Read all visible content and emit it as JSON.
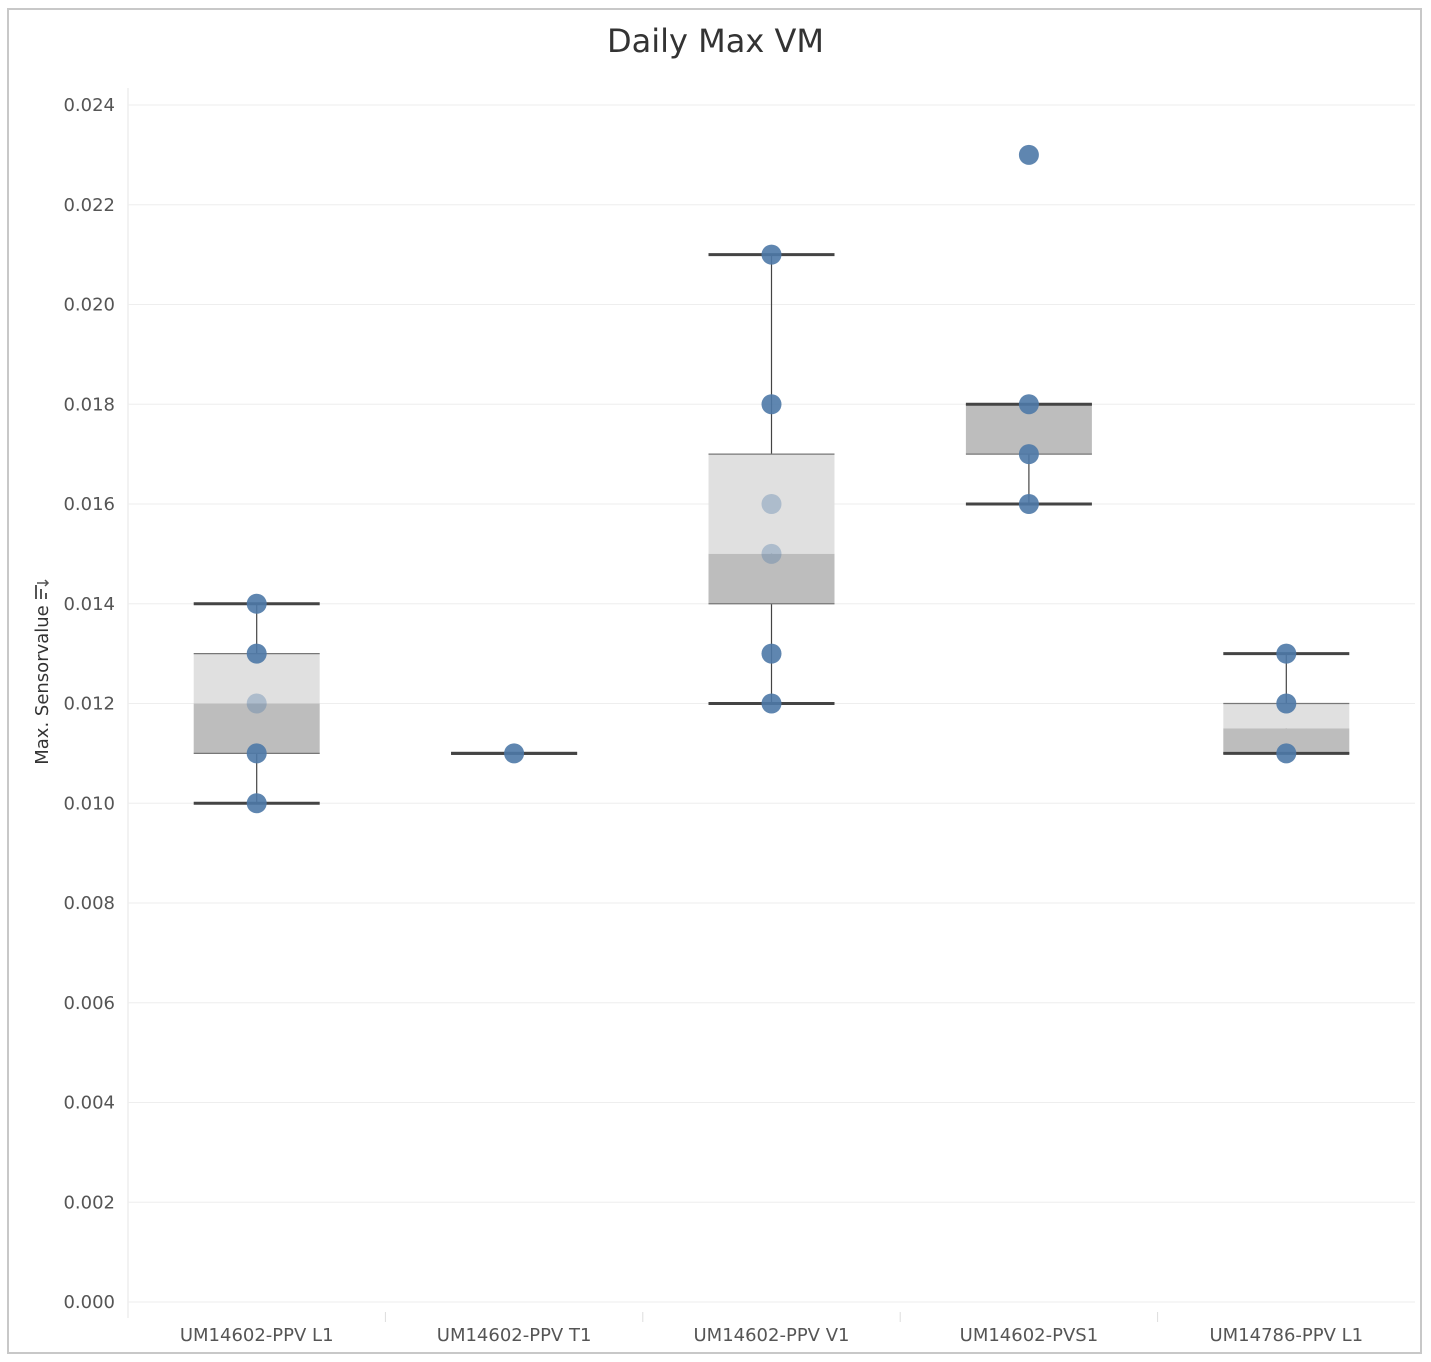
{
  "chart_data": {
    "type": "box",
    "title": "Daily Max VM",
    "ylabel": "Max. Sensorvalue",
    "xlabel": "",
    "ylim": [
      0,
      0.024
    ],
    "yticks": [
      "0.000",
      "0.002",
      "0.004",
      "0.006",
      "0.008",
      "0.010",
      "0.012",
      "0.014",
      "0.016",
      "0.018",
      "0.020",
      "0.022",
      "0.024"
    ],
    "grid": true,
    "categories": [
      "UM14602-PPV L1",
      "UM14602-PPV T1",
      "UM14602-PPV V1",
      "UM14602-PVS1",
      "UM14786-PPV L1"
    ],
    "boxes": [
      {
        "category": "UM14602-PPV L1",
        "min": 0.01,
        "q1": 0.011,
        "median": 0.012,
        "q3": 0.013,
        "max": 0.014,
        "points": [
          0.01,
          0.011,
          0.012,
          0.013,
          0.014
        ]
      },
      {
        "category": "UM14602-PPV T1",
        "min": 0.011,
        "q1": 0.011,
        "median": 0.011,
        "q3": 0.011,
        "max": 0.011,
        "points": [
          0.011
        ]
      },
      {
        "category": "UM14602-PPV V1",
        "min": 0.012,
        "q1": 0.014,
        "median": 0.015,
        "q3": 0.017,
        "max": 0.021,
        "points": [
          0.012,
          0.013,
          0.015,
          0.016,
          0.018,
          0.021
        ]
      },
      {
        "category": "UM14602-PVS1",
        "min": 0.016,
        "q1": 0.017,
        "median": 0.018,
        "q3": 0.018,
        "max": 0.018,
        "points": [
          0.016,
          0.017,
          0.018,
          0.023
        ]
      },
      {
        "category": "UM14786-PPV L1",
        "min": 0.011,
        "q1": 0.011,
        "median": 0.0115,
        "q3": 0.012,
        "max": 0.013,
        "points": [
          0.011,
          0.012,
          0.013
        ]
      }
    ],
    "colors": {
      "point": "#4e79a7",
      "box_upper": "#e0e0e0",
      "box_lower": "#bdbdbd",
      "whisker": "#444444",
      "grid": "#eeeeee"
    }
  }
}
